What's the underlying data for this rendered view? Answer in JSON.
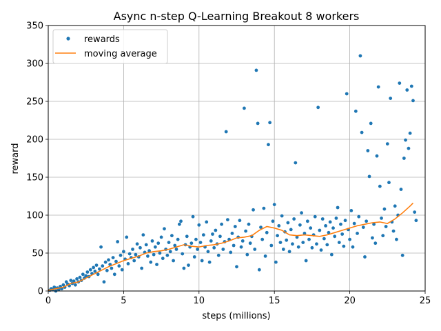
{
  "chart_data": {
    "type": "scatter",
    "title": "Async n-step Q-Learning Breakout 8 workers",
    "xlabel": "steps (millions)",
    "ylabel": "reward",
    "xlim": [
      0,
      25
    ],
    "ylim": [
      0,
      350
    ],
    "xticks": [
      0,
      5,
      10,
      15,
      20,
      25
    ],
    "yticks": [
      0,
      50,
      100,
      150,
      200,
      250,
      300,
      350
    ],
    "grid": true,
    "legend_position": "top-left",
    "colors": {
      "rewards": "#1f77b4",
      "moving_average": "#ff7f0e",
      "grid": "#b0b0b0"
    },
    "series": [
      {
        "name": "rewards",
        "style": "points",
        "points": [
          [
            0.1,
            1
          ],
          [
            0.2,
            3
          ],
          [
            0.3,
            2
          ],
          [
            0.4,
            5
          ],
          [
            0.5,
            0
          ],
          [
            0.6,
            4
          ],
          [
            0.7,
            2
          ],
          [
            0.8,
            6
          ],
          [
            0.9,
            3
          ],
          [
            1.0,
            8
          ],
          [
            1.1,
            5
          ],
          [
            1.2,
            12
          ],
          [
            1.3,
            9
          ],
          [
            1.4,
            7
          ],
          [
            1.5,
            14
          ],
          [
            1.6,
            10
          ],
          [
            1.7,
            13
          ],
          [
            1.8,
            8
          ],
          [
            1.9,
            16
          ],
          [
            2.0,
            12
          ],
          [
            2.1,
            18
          ],
          [
            2.2,
            14
          ],
          [
            2.3,
            22
          ],
          [
            2.4,
            17
          ],
          [
            2.5,
            20
          ],
          [
            2.6,
            25
          ],
          [
            2.7,
            19
          ],
          [
            2.8,
            28
          ],
          [
            2.9,
            23
          ],
          [
            3.0,
            31
          ],
          [
            3.1,
            26
          ],
          [
            3.2,
            34
          ],
          [
            3.3,
            22
          ],
          [
            3.4,
            29
          ],
          [
            3.5,
            58
          ],
          [
            3.6,
            33
          ],
          [
            3.7,
            12
          ],
          [
            3.8,
            38
          ],
          [
            3.9,
            27
          ],
          [
            4.0,
            41
          ],
          [
            4.1,
            35
          ],
          [
            4.2,
            30
          ],
          [
            4.3,
            44
          ],
          [
            4.4,
            22
          ],
          [
            4.5,
            39
          ],
          [
            4.6,
            65
          ],
          [
            4.7,
            33
          ],
          [
            4.8,
            47
          ],
          [
            4.9,
            28
          ],
          [
            5.0,
            52
          ],
          [
            5.1,
            42
          ],
          [
            5.2,
            71
          ],
          [
            5.3,
            36
          ],
          [
            5.4,
            49
          ],
          [
            5.5,
            44
          ],
          [
            5.6,
            55
          ],
          [
            5.7,
            40
          ],
          [
            5.8,
            48
          ],
          [
            5.9,
            62
          ],
          [
            6.0,
            45
          ],
          [
            6.1,
            57
          ],
          [
            6.2,
            30
          ],
          [
            6.3,
            74
          ],
          [
            6.4,
            51
          ],
          [
            6.5,
            61
          ],
          [
            6.6,
            46
          ],
          [
            6.7,
            53
          ],
          [
            6.8,
            38
          ],
          [
            6.9,
            66
          ],
          [
            7.0,
            48
          ],
          [
            7.1,
            58
          ],
          [
            7.2,
            35
          ],
          [
            7.3,
            63
          ],
          [
            7.4,
            50
          ],
          [
            7.5,
            71
          ],
          [
            7.6,
            43
          ],
          [
            7.7,
            82
          ],
          [
            7.8,
            55
          ],
          [
            7.9,
            47
          ],
          [
            8.0,
            64
          ],
          [
            8.1,
            52
          ],
          [
            8.2,
            73
          ],
          [
            8.3,
            40
          ],
          [
            8.4,
            60
          ],
          [
            8.5,
            55
          ],
          [
            8.6,
            68
          ],
          [
            8.7,
            88
          ],
          [
            8.8,
            92
          ],
          [
            8.9,
            49
          ],
          [
            9.0,
            30
          ],
          [
            9.1,
            61
          ],
          [
            9.2,
            72
          ],
          [
            9.3,
            34
          ],
          [
            9.4,
            58
          ],
          [
            9.5,
            63
          ],
          [
            9.6,
            98
          ],
          [
            9.7,
            45
          ],
          [
            9.8,
            68
          ],
          [
            9.9,
            55
          ],
          [
            10.0,
            87
          ],
          [
            10.1,
            64
          ],
          [
            10.2,
            40
          ],
          [
            10.3,
            74
          ],
          [
            10.4,
            58
          ],
          [
            10.5,
            91
          ],
          [
            10.6,
            52
          ],
          [
            10.7,
            38
          ],
          [
            10.8,
            66
          ],
          [
            10.9,
            75
          ],
          [
            11.0,
            57
          ],
          [
            11.1,
            80
          ],
          [
            11.2,
            62
          ],
          [
            11.3,
            47
          ],
          [
            11.4,
            72
          ],
          [
            11.5,
            88
          ],
          [
            11.6,
            55
          ],
          [
            11.7,
            65
          ],
          [
            11.8,
            210
          ],
          [
            11.9,
            94
          ],
          [
            12.0,
            68
          ],
          [
            12.1,
            51
          ],
          [
            12.2,
            76
          ],
          [
            12.3,
            60
          ],
          [
            12.4,
            85
          ],
          [
            12.5,
            32
          ],
          [
            12.6,
            71
          ],
          [
            12.7,
            93
          ],
          [
            12.8,
            58
          ],
          [
            12.9,
            66
          ],
          [
            13.0,
            241
          ],
          [
            13.1,
            79
          ],
          [
            13.2,
            48
          ],
          [
            13.3,
            88
          ],
          [
            13.4,
            63
          ],
          [
            13.5,
            72
          ],
          [
            13.6,
            107
          ],
          [
            13.7,
            55
          ],
          [
            13.8,
            291
          ],
          [
            13.9,
            221
          ],
          [
            14.0,
            28
          ],
          [
            14.1,
            84
          ],
          [
            14.2,
            68
          ],
          [
            14.3,
            109
          ],
          [
            14.4,
            46
          ],
          [
            14.5,
            77
          ],
          [
            14.6,
            193
          ],
          [
            14.7,
            222
          ],
          [
            14.8,
            60
          ],
          [
            14.9,
            92
          ],
          [
            15.0,
            114
          ],
          [
            15.1,
            38
          ],
          [
            15.2,
            73
          ],
          [
            15.3,
            86
          ],
          [
            15.4,
            64
          ],
          [
            15.5,
            99
          ],
          [
            15.6,
            55
          ],
          [
            15.7,
            78
          ],
          [
            15.8,
            67
          ],
          [
            15.9,
            90
          ],
          [
            16.0,
            52
          ],
          [
            16.1,
            81
          ],
          [
            16.2,
            62
          ],
          [
            16.3,
            95
          ],
          [
            16.4,
            169
          ],
          [
            16.5,
            71
          ],
          [
            16.6,
            58
          ],
          [
            16.7,
            87
          ],
          [
            16.8,
            103
          ],
          [
            16.9,
            64
          ],
          [
            17.0,
            76
          ],
          [
            17.1,
            40
          ],
          [
            17.2,
            92
          ],
          [
            17.3,
            68
          ],
          [
            17.4,
            83
          ],
          [
            17.5,
            57
          ],
          [
            17.6,
            74
          ],
          [
            17.7,
            98
          ],
          [
            17.8,
            62
          ],
          [
            17.9,
            242
          ],
          [
            18.0,
            80
          ],
          [
            18.1,
            54
          ],
          [
            18.2,
            95
          ],
          [
            18.3,
            69
          ],
          [
            18.4,
            86
          ],
          [
            18.5,
            61
          ],
          [
            18.6,
            77
          ],
          [
            18.7,
            91
          ],
          [
            18.8,
            48
          ],
          [
            18.9,
            83
          ],
          [
            19.0,
            72
          ],
          [
            19.1,
            96
          ],
          [
            19.2,
            110
          ],
          [
            19.3,
            64
          ],
          [
            19.4,
            88
          ],
          [
            19.5,
            75
          ],
          [
            19.6,
            59
          ],
          [
            19.7,
            93
          ],
          [
            19.8,
            260
          ],
          [
            19.9,
            81
          ],
          [
            20.0,
            68
          ],
          [
            20.1,
            106
          ],
          [
            20.2,
            58
          ],
          [
            20.3,
            89
          ],
          [
            20.4,
            237
          ],
          [
            20.5,
            76
          ],
          [
            20.6,
            98
          ],
          [
            20.7,
            310
          ],
          [
            20.8,
            209
          ],
          [
            20.9,
            84
          ],
          [
            21.0,
            45
          ],
          [
            21.1,
            92
          ],
          [
            21.2,
            185
          ],
          [
            21.3,
            151
          ],
          [
            21.4,
            221
          ],
          [
            21.5,
            70
          ],
          [
            21.6,
            88
          ],
          [
            21.7,
            63
          ],
          [
            21.8,
            178
          ],
          [
            21.9,
            269
          ],
          [
            22.0,
            138
          ],
          [
            22.1,
            96
          ],
          [
            22.2,
            73
          ],
          [
            22.3,
            108
          ],
          [
            22.4,
            85
          ],
          [
            22.5,
            194
          ],
          [
            22.6,
            143
          ],
          [
            22.7,
            254
          ],
          [
            22.8,
            91
          ],
          [
            22.9,
            79
          ],
          [
            23.0,
            112
          ],
          [
            23.1,
            68
          ],
          [
            23.2,
            100
          ],
          [
            23.3,
            274
          ],
          [
            23.4,
            134
          ],
          [
            23.5,
            47
          ],
          [
            23.6,
            175
          ],
          [
            23.7,
            199
          ],
          [
            23.8,
            265
          ],
          [
            23.9,
            188
          ],
          [
            24.0,
            208
          ],
          [
            24.1,
            270
          ],
          [
            24.2,
            251
          ],
          [
            24.3,
            104
          ],
          [
            24.4,
            93
          ]
        ]
      },
      {
        "name": "moving average",
        "style": "line",
        "points": [
          [
            0,
            1
          ],
          [
            0.5,
            3
          ],
          [
            1.0,
            5
          ],
          [
            1.5,
            10
          ],
          [
            2.0,
            12
          ],
          [
            2.5,
            17
          ],
          [
            3.0,
            22
          ],
          [
            3.5,
            27
          ],
          [
            4.0,
            32
          ],
          [
            4.5,
            36
          ],
          [
            5.0,
            40
          ],
          [
            5.5,
            43
          ],
          [
            6.0,
            46
          ],
          [
            6.5,
            50
          ],
          [
            7.0,
            52
          ],
          [
            7.5,
            53
          ],
          [
            8.0,
            55
          ],
          [
            8.5,
            58
          ],
          [
            9.0,
            61
          ],
          [
            9.5,
            59
          ],
          [
            10.0,
            58
          ],
          [
            10.5,
            60
          ],
          [
            11.0,
            61
          ],
          [
            11.5,
            63
          ],
          [
            12.0,
            66
          ],
          [
            12.5,
            70
          ],
          [
            13.0,
            71
          ],
          [
            13.5,
            73
          ],
          [
            14.0,
            80
          ],
          [
            14.5,
            85
          ],
          [
            15.0,
            83
          ],
          [
            15.5,
            80
          ],
          [
            16.0,
            74
          ],
          [
            16.5,
            73
          ],
          [
            17.0,
            74
          ],
          [
            17.5,
            73
          ],
          [
            18.0,
            72
          ],
          [
            18.5,
            74
          ],
          [
            19.0,
            77
          ],
          [
            19.5,
            80
          ],
          [
            20.0,
            83
          ],
          [
            20.5,
            86
          ],
          [
            21.0,
            88
          ],
          [
            21.5,
            90
          ],
          [
            22.0,
            91
          ],
          [
            22.5,
            89
          ],
          [
            23.0,
            95
          ],
          [
            23.5,
            103
          ],
          [
            24.0,
            112
          ],
          [
            24.2,
            116
          ]
        ]
      }
    ]
  }
}
